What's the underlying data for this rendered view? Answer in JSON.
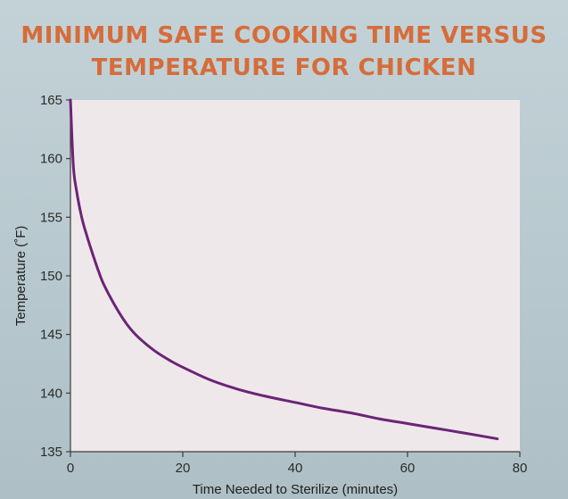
{
  "title_lines": [
    "MINIMUM SAFE COOKING TIME VERSUS",
    "TEMPERATURE FOR CHICKEN"
  ],
  "colors": {
    "background": "#b9c9cf",
    "plot_background": "#efe8ea",
    "title": "#d66c3a",
    "series": "#6b2476",
    "axis": "#3c3c3c"
  },
  "chart_data": {
    "type": "line",
    "title": "MINIMUM SAFE COOKING TIME VERSUS TEMPERATURE FOR CHICKEN",
    "xlabel": "Time Needed to Sterilize (minutes)",
    "ylabel": "Temperature (˚F)",
    "xlim": [
      0,
      80
    ],
    "ylim": [
      135,
      165
    ],
    "x_ticks": [
      0,
      20,
      40,
      60,
      80
    ],
    "y_ticks": [
      135,
      140,
      145,
      150,
      155,
      160,
      165
    ],
    "grid": false,
    "series": [
      {
        "x": [
          0.0,
          0.5,
          1,
          2,
          3,
          4,
          5,
          6,
          8,
          10,
          12,
          15,
          18,
          20,
          25,
          30,
          35,
          40,
          45,
          50,
          55,
          60,
          65,
          70,
          76
        ],
        "y": [
          165.0,
          159.5,
          157.5,
          155.0,
          153.3,
          151.8,
          150.4,
          149.2,
          147.4,
          145.9,
          144.8,
          143.6,
          142.7,
          142.2,
          141.1,
          140.3,
          139.7,
          139.2,
          138.7,
          138.3,
          137.8,
          137.4,
          137.0,
          136.6,
          136.1
        ]
      }
    ]
  }
}
